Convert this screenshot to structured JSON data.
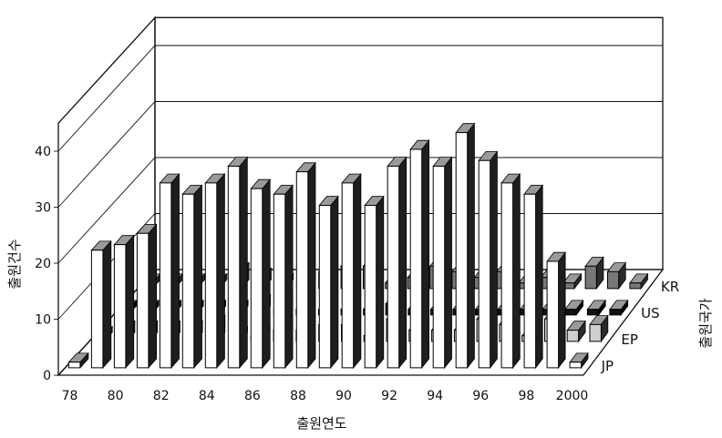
{
  "chart_data": {
    "type": "bar",
    "style": "3d-grouped-bar",
    "x": [
      1978,
      1979,
      1980,
      1981,
      1982,
      1983,
      1984,
      1985,
      1986,
      1987,
      1988,
      1989,
      1990,
      1991,
      1992,
      1993,
      1994,
      1995,
      1996,
      1997,
      1998,
      1999,
      2000
    ],
    "x_tick_labels": [
      "78",
      "80",
      "82",
      "84",
      "86",
      "88",
      "90",
      "92",
      "94",
      "96",
      "98",
      "2000"
    ],
    "y_tick_labels": [
      "0",
      "10",
      "20",
      "30",
      "40"
    ],
    "ylim": [
      0,
      45
    ],
    "ylabel": "출원건수",
    "xlabel": "출원연도",
    "zlabel": "출원국가",
    "grid": true,
    "series": [
      {
        "name": "JP",
        "values": [
          1,
          21,
          22,
          24,
          33,
          31,
          33,
          36,
          32,
          31,
          35,
          29,
          33,
          29,
          36,
          39,
          36,
          42,
          37,
          33,
          31,
          19,
          1
        ]
      },
      {
        "name": "EP",
        "values": [
          1,
          2,
          2,
          2,
          2,
          3,
          1,
          1,
          2,
          2,
          3,
          3,
          1,
          4,
          2,
          2,
          2,
          4,
          3,
          1,
          4,
          2,
          3
        ]
      },
      {
        "name": "US",
        "values": [
          1,
          1,
          1,
          1,
          1,
          1,
          2,
          1,
          1,
          1,
          1,
          1,
          2,
          1,
          1,
          1,
          1,
          1,
          1,
          1,
          1,
          1,
          1
        ]
      },
      {
        "name": "KR",
        "values": [
          1,
          1,
          1,
          1,
          3,
          2,
          1,
          1,
          3,
          4,
          4,
          1,
          2,
          4,
          3,
          2,
          3,
          1,
          2,
          1,
          4,
          3,
          1
        ]
      }
    ],
    "colors": {
      "JP_front": "#ffffff",
      "JP_side": "#1e1e1e",
      "EP_front": "#cfcfcf",
      "EP_side": "#2a2a2a",
      "US_front": "#111111",
      "US_side": "#000000",
      "KR_front": "#777777",
      "KR_side": "#2a2a2a"
    }
  }
}
